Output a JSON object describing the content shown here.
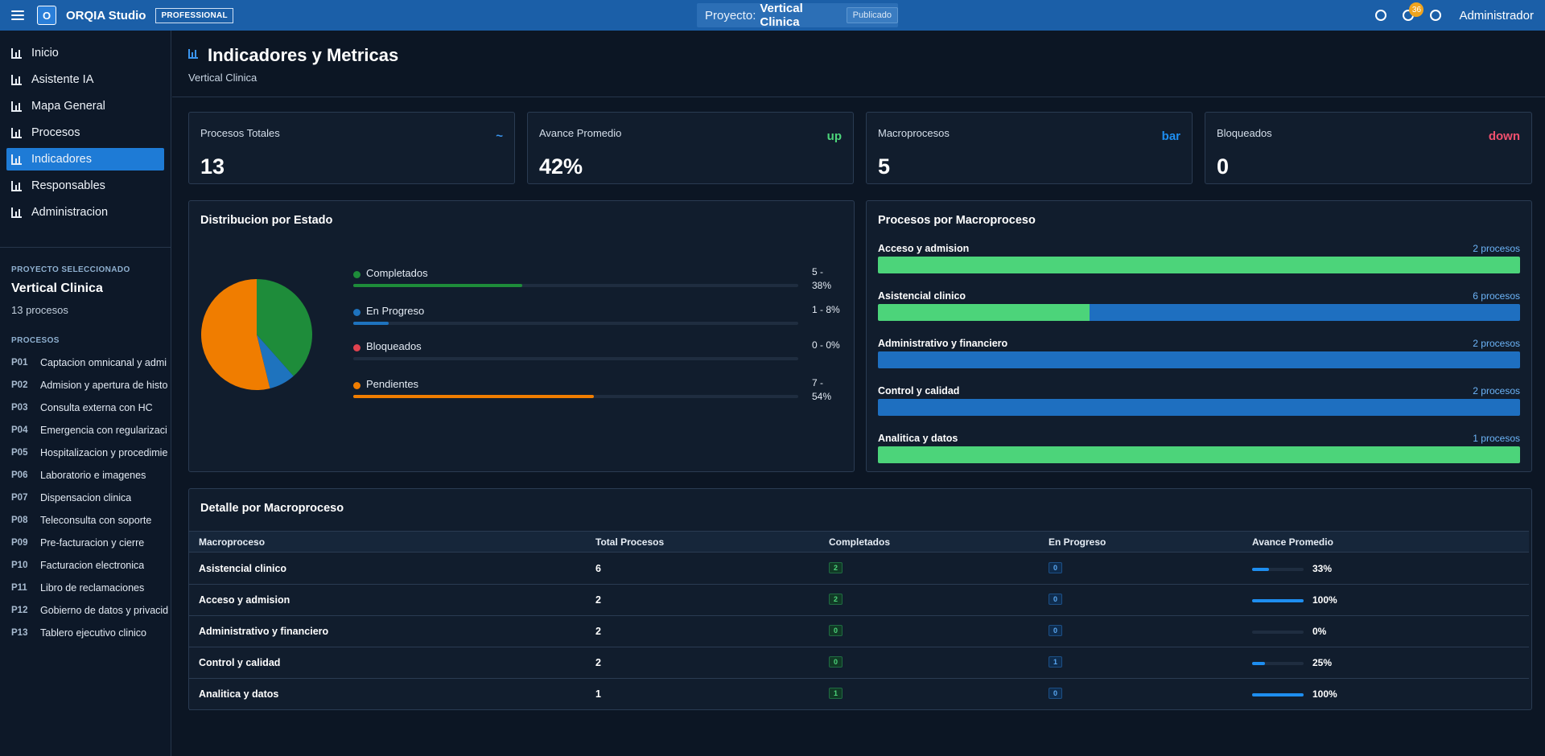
{
  "topbar": {
    "logo_letter": "O",
    "app_title": "ORQIA Studio",
    "plan_badge": "PROFESSIONAL",
    "project_prefix": "Proyecto:",
    "project_name": "Vertical Clinica",
    "project_status": "Publicado",
    "notifications_count": "36",
    "user_name": "Administrador"
  },
  "sidebar": {
    "nav": [
      {
        "label": "Inicio"
      },
      {
        "label": "Asistente IA"
      },
      {
        "label": "Mapa General"
      },
      {
        "label": "Procesos"
      },
      {
        "label": "Indicadores",
        "active": true
      },
      {
        "label": "Responsables"
      },
      {
        "label": "Administracion"
      }
    ],
    "project_caption": "PROYECTO SELECCIONADO",
    "project_name": "Vertical Clinica",
    "project_count": "13 procesos",
    "processes_caption": "PROCESOS",
    "processes": [
      {
        "code": "P01",
        "name": "Captacion omnicanal y admi"
      },
      {
        "code": "P02",
        "name": "Admision y apertura de histo"
      },
      {
        "code": "P03",
        "name": "Consulta externa con HC"
      },
      {
        "code": "P04",
        "name": "Emergencia con regularizaci"
      },
      {
        "code": "P05",
        "name": "Hospitalizacion y procedimie"
      },
      {
        "code": "P06",
        "name": "Laboratorio e imagenes"
      },
      {
        "code": "P07",
        "name": "Dispensacion clinica"
      },
      {
        "code": "P08",
        "name": "Teleconsulta con soporte"
      },
      {
        "code": "P09",
        "name": "Pre-facturacion y cierre"
      },
      {
        "code": "P10",
        "name": "Facturacion electronica"
      },
      {
        "code": "P11",
        "name": "Libro de reclamaciones"
      },
      {
        "code": "P12",
        "name": "Gobierno de datos y privacid"
      },
      {
        "code": "P13",
        "name": "Tablero ejecutivo clinico"
      }
    ]
  },
  "header": {
    "title": "Indicadores y Metricas",
    "subtitle": "Vertical Clinica"
  },
  "kpis": [
    {
      "label": "Procesos Totales",
      "value": "13",
      "trend": "~",
      "trend_color": "#3a95ee"
    },
    {
      "label": "Avance Promedio",
      "value": "42%",
      "trend": "up",
      "trend_color": "#4cd47a"
    },
    {
      "label": "Macroprocesos",
      "value": "5",
      "trend": "bar",
      "trend_color": "#1e8ef0"
    },
    {
      "label": "Bloqueados",
      "value": "0",
      "trend": "down",
      "trend_color": "#f0506e"
    }
  ],
  "status_card": {
    "title": "Distribucion por Estado",
    "items": [
      {
        "label": "Completados",
        "value_line1": "5 -",
        "value_line2": "38%",
        "count": 5,
        "fraction": 0.38,
        "color": "#1e8c3a"
      },
      {
        "label": "En Progreso",
        "value_line1": "1 - 8%",
        "value_line2": "",
        "count": 1,
        "fraction": 0.08,
        "color": "#1e73be"
      },
      {
        "label": "Bloqueados",
        "value_line1": "0 - 0%",
        "value_line2": "",
        "count": 0,
        "fraction": 0.0,
        "color": "#e0424f"
      },
      {
        "label": "Pendientes",
        "value_line1": "7 -",
        "value_line2": "54%",
        "count": 7,
        "fraction": 0.54,
        "color": "#f07d00"
      }
    ]
  },
  "macro_card": {
    "title": "Procesos por Macroproceso",
    "items": [
      {
        "name": "Acceso y admision",
        "count_label": "2 procesos",
        "completed_fraction": 1.0
      },
      {
        "name": "Asistencial clinico",
        "count_label": "6 procesos",
        "completed_fraction": 0.33
      },
      {
        "name": "Administrativo y financiero",
        "count_label": "2 procesos",
        "completed_fraction": 0.0
      },
      {
        "name": "Control y calidad",
        "count_label": "2 procesos",
        "completed_fraction": 0.0
      },
      {
        "name": "Analitica y datos",
        "count_label": "1 procesos",
        "completed_fraction": 1.0
      }
    ],
    "completed_color": "#4cd47a",
    "remaining_color": "#1e6fc0"
  },
  "detail_table": {
    "title": "Detalle por Macroproceso",
    "headers": [
      "Macroproceso",
      "Total Procesos",
      "Completados",
      "En Progreso",
      "Avance Promedio"
    ],
    "rows": [
      {
        "macro": "Asistencial clinico",
        "total": "6",
        "completed": "2",
        "in_progress": "0",
        "progress_label": "33%",
        "progress": 0.33
      },
      {
        "macro": "Acceso y admision",
        "total": "2",
        "completed": "2",
        "in_progress": "0",
        "progress_label": "100%",
        "progress": 1.0
      },
      {
        "macro": "Administrativo y financiero",
        "total": "2",
        "completed": "0",
        "in_progress": "0",
        "progress_label": "0%",
        "progress": 0.0
      },
      {
        "macro": "Control y calidad",
        "total": "2",
        "completed": "0",
        "in_progress": "1",
        "progress_label": "25%",
        "progress": 0.25
      },
      {
        "macro": "Analitica y datos",
        "total": "1",
        "completed": "1",
        "in_progress": "0",
        "progress_label": "100%",
        "progress": 1.0
      }
    ]
  }
}
